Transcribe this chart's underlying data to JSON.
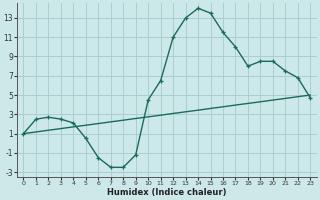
{
  "xlabel": "Humidex (Indice chaleur)",
  "ylabel": "",
  "bg_color": "#cce8e8",
  "grid_color": "#aacece",
  "line_color": "#1a6b5a",
  "x_wavy": [
    0,
    1,
    2,
    3,
    4,
    5,
    6,
    7,
    8,
    9,
    10,
    11,
    12,
    13,
    14,
    15,
    16,
    17,
    18,
    19,
    20,
    21,
    22,
    23
  ],
  "y_wavy": [
    1,
    2.5,
    2.7,
    2.5,
    2.1,
    0.5,
    -1.5,
    -2.5,
    -2.5,
    -1.2,
    4.5,
    6.5,
    11.0,
    13.0,
    14.0,
    13.5,
    11.5,
    10.0,
    8.0,
    8.5,
    8.5,
    7.5,
    6.8,
    4.7
  ],
  "x_linear": [
    0,
    1,
    2,
    3,
    4,
    5,
    6,
    7,
    8,
    9,
    10,
    11,
    12,
    13,
    14,
    15,
    16,
    17,
    18,
    19,
    20,
    21,
    22,
    23
  ],
  "y_linear": [
    1.0,
    1.17,
    1.35,
    1.52,
    1.7,
    1.87,
    2.04,
    2.22,
    2.39,
    2.57,
    2.74,
    2.91,
    3.09,
    3.26,
    3.43,
    3.61,
    3.78,
    3.96,
    4.13,
    4.3,
    4.48,
    4.65,
    4.83,
    5.0
  ],
  "xlim": [
    -0.5,
    23.5
  ],
  "ylim": [
    -3.5,
    14.5
  ],
  "yticks": [
    -3,
    -1,
    1,
    3,
    5,
    7,
    9,
    11,
    13
  ],
  "xticks": [
    0,
    1,
    2,
    3,
    4,
    5,
    6,
    7,
    8,
    9,
    10,
    11,
    12,
    13,
    14,
    15,
    16,
    17,
    18,
    19,
    20,
    21,
    22,
    23
  ]
}
